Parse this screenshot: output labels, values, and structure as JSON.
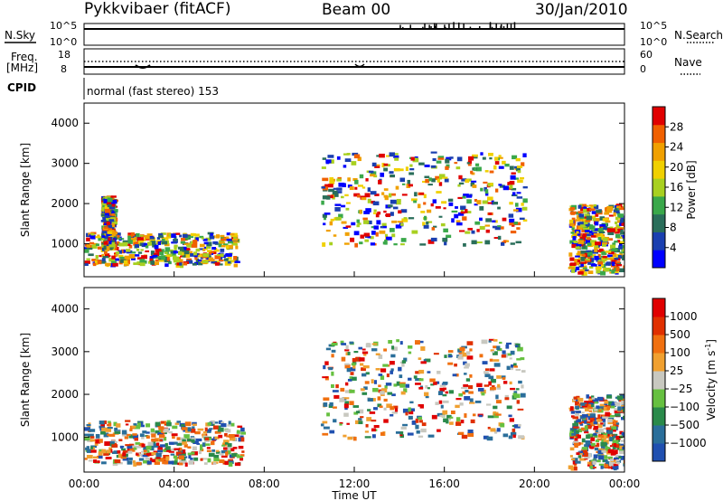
{
  "header": {
    "station": "Pykkvibaer (fitACF)",
    "beam": "Beam 00",
    "date": "30/Jan/2010"
  },
  "status_panels": {
    "nsky_label": "N.Sky",
    "nsky_ticks": [
      "10^5",
      "10^0"
    ],
    "nsearch_label": "N.Search",
    "nsearch_ticks": [
      "10^5",
      "10^0"
    ],
    "freq_label_1": "Freq.",
    "freq_label_2": "[MHz]",
    "freq_ticks": [
      "18",
      "8"
    ],
    "nave_label": "Nave",
    "nave_ticks": [
      "60",
      "0"
    ],
    "cpid_label": "CPID",
    "cpid_text": "normal (fast stereo) 153"
  },
  "chart_data": [
    {
      "type": "heatmap",
      "title": "",
      "ylabel": "Slant Range [km]",
      "yticks": [
        "1000",
        "2000",
        "3000",
        "4000"
      ],
      "ylim": [
        180,
        4500
      ],
      "xlim_hours": [
        0,
        24
      ],
      "grid": false,
      "colorbar": {
        "label": "Power [dB]",
        "ticks": [
          "28",
          "24",
          "20",
          "16",
          "12",
          "8",
          "4"
        ],
        "colors": [
          "#0000ff",
          "#1a3fb0",
          "#2a6e5a",
          "#3aa84a",
          "#a8d020",
          "#f0d000",
          "#f0a000",
          "#f06000",
          "#e00000"
        ]
      },
      "regions": [
        {
          "time_range": [
            "00:00",
            "06:45"
          ],
          "range_km": [
            500,
            1300
          ],
          "power_db": [
            8,
            28
          ]
        },
        {
          "time_range": [
            "00:45",
            "01:15"
          ],
          "range_km": [
            900,
            2200
          ],
          "power_db": [
            12,
            24
          ]
        },
        {
          "time_range": [
            "10:30",
            "19:30"
          ],
          "range_km": [
            1000,
            3300
          ],
          "power_db": [
            4,
            28
          ]
        },
        {
          "time_range": [
            "21:30",
            "24:00"
          ],
          "range_km": [
            300,
            2000
          ],
          "power_db": [
            8,
            28
          ]
        }
      ]
    },
    {
      "type": "heatmap",
      "title": "",
      "ylabel": "Slant Range [km]",
      "yticks": [
        "1000",
        "2000",
        "3000",
        "4000"
      ],
      "ylim": [
        180,
        4500
      ],
      "xlabel": "Time UT",
      "xticks": [
        "00:00",
        "04:00",
        "08:00",
        "12:00",
        "16:00",
        "20:00",
        "00:00"
      ],
      "grid": false,
      "colorbar": {
        "label": "Velocity [m s",
        "label_sup": "-1",
        "label_close": "]",
        "ticks": [
          "1000",
          "500",
          "100",
          "25",
          "−25",
          "−100",
          "−500",
          "−1000"
        ],
        "colors": [
          "#2050b0",
          "#2a6e9a",
          "#2a8a4a",
          "#66c040",
          "#c8c8c0",
          "#f0a030",
          "#f07010",
          "#e03000",
          "#e00000"
        ]
      },
      "regions": [
        {
          "time_range": [
            "00:00",
            "07:00"
          ],
          "range_km": [
            400,
            1400
          ],
          "velocity_ms": [
            -500,
            100
          ]
        },
        {
          "time_range": [
            "10:30",
            "19:30"
          ],
          "range_km": [
            1000,
            3300
          ],
          "velocity_ms": [
            -100,
            500
          ]
        },
        {
          "time_range": [
            "21:30",
            "24:00"
          ],
          "range_km": [
            300,
            2000
          ],
          "velocity_ms": [
            -500,
            1000
          ]
        }
      ]
    }
  ]
}
